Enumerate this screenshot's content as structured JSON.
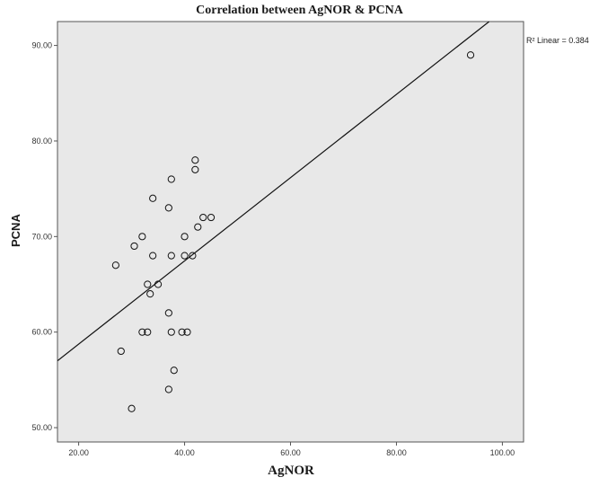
{
  "chart_data": {
    "type": "scatter",
    "title": "Correlation between AgNOR & PCNA",
    "xlabel": "AgNOR",
    "ylabel": "PCNA",
    "xlim": [
      16,
      104
    ],
    "ylim": [
      48.5,
      92.5
    ],
    "xticks": [
      "20.00",
      "40.00",
      "60.00",
      "80.00",
      "100.00"
    ],
    "yticks": [
      "50.00",
      "60.00",
      "70.00",
      "80.00",
      "90.00"
    ],
    "grid": false,
    "background_color": "#e8e8e8",
    "points": [
      {
        "x": 27,
        "y": 67
      },
      {
        "x": 28,
        "y": 58
      },
      {
        "x": 30,
        "y": 52
      },
      {
        "x": 30.5,
        "y": 69
      },
      {
        "x": 32,
        "y": 70
      },
      {
        "x": 32,
        "y": 60
      },
      {
        "x": 33,
        "y": 60
      },
      {
        "x": 33,
        "y": 65
      },
      {
        "x": 33.5,
        "y": 64
      },
      {
        "x": 34,
        "y": 74
      },
      {
        "x": 34,
        "y": 68
      },
      {
        "x": 35,
        "y": 65
      },
      {
        "x": 37,
        "y": 73
      },
      {
        "x": 37,
        "y": 62
      },
      {
        "x": 37,
        "y": 54
      },
      {
        "x": 37.5,
        "y": 76
      },
      {
        "x": 37.5,
        "y": 68
      },
      {
        "x": 37.5,
        "y": 60
      },
      {
        "x": 38,
        "y": 56
      },
      {
        "x": 39.5,
        "y": 60
      },
      {
        "x": 40,
        "y": 70
      },
      {
        "x": 40,
        "y": 68
      },
      {
        "x": 40.5,
        "y": 60
      },
      {
        "x": 41.5,
        "y": 68
      },
      {
        "x": 42,
        "y": 78
      },
      {
        "x": 42,
        "y": 77
      },
      {
        "x": 42.5,
        "y": 71
      },
      {
        "x": 43.5,
        "y": 72
      },
      {
        "x": 45,
        "y": 72
      },
      {
        "x": 94,
        "y": 89
      }
    ],
    "fit_line": {
      "type": "linear",
      "x": [
        16,
        97.5
      ],
      "y": [
        57,
        92.5
      ],
      "label": "R² Linear = 0.384",
      "r2": 0.384
    }
  }
}
